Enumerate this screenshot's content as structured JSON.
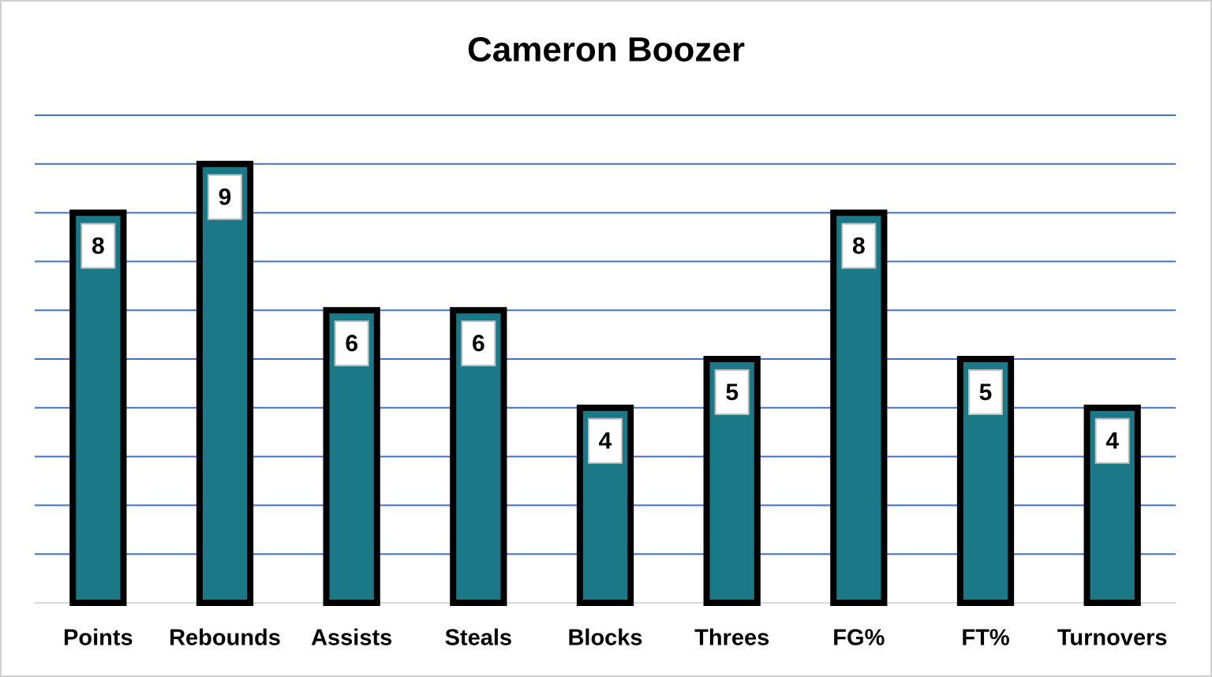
{
  "chart_data": {
    "type": "bar",
    "title": "Cameron Boozer",
    "categories": [
      "Points",
      "Rebounds",
      "Assists",
      "Steals",
      "Blocks",
      "Threes",
      "FG%",
      "FT%",
      "Turnovers"
    ],
    "values": [
      8,
      9,
      6,
      6,
      4,
      5,
      8,
      5,
      4
    ],
    "color": "#1b7887",
    "ylim": [
      0,
      10
    ],
    "yticks": [
      0,
      1,
      2,
      3,
      4,
      5,
      6,
      7,
      8,
      9,
      10
    ],
    "grid": true
  }
}
